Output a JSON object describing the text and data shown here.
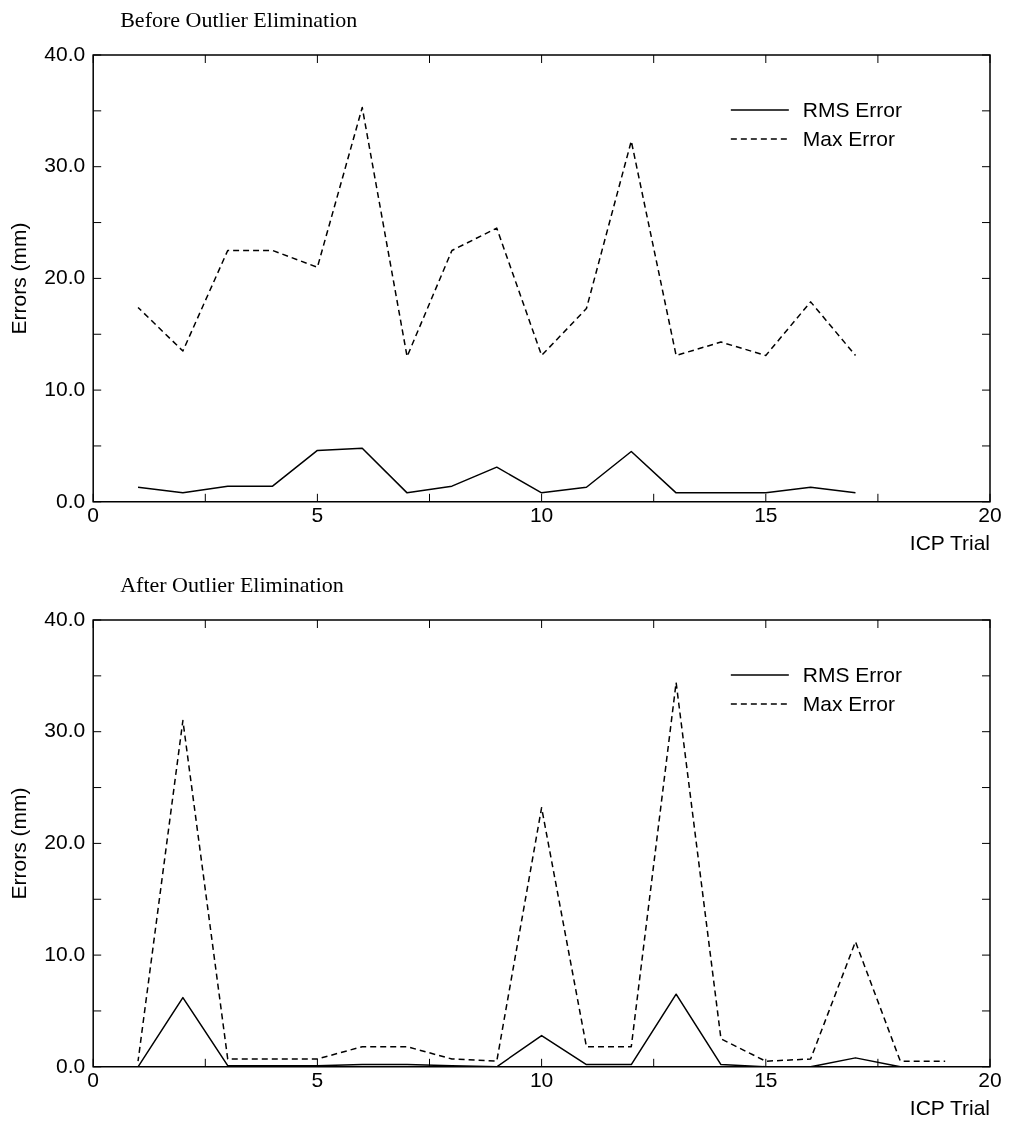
{
  "chart_data": [
    {
      "type": "line",
      "title": "Before Outlier Elimination",
      "xlabel": "ICP Trial",
      "ylabel": "Errors (mm)",
      "x": [
        1,
        2,
        3,
        4,
        5,
        6,
        7,
        8,
        9,
        10,
        11,
        12,
        13,
        14,
        15,
        16,
        17
      ],
      "series": [
        {
          "name": "RMS Error",
          "color": "#000000",
          "line_style": "solid",
          "values": [
            1.3,
            0.8,
            1.4,
            1.4,
            4.6,
            4.8,
            0.8,
            1.4,
            3.1,
            0.8,
            1.3,
            4.5,
            0.8,
            0.8,
            0.8,
            1.3,
            0.8
          ]
        },
        {
          "name": "Max Error",
          "color": "#000000",
          "line_style": "dashed",
          "values": [
            17.4,
            13.5,
            22.5,
            22.5,
            21.0,
            35.3,
            13.0,
            22.5,
            24.5,
            13.1,
            17.3,
            32.3,
            13.1,
            14.3,
            13.1,
            17.9,
            13.1
          ]
        }
      ],
      "xlim": [
        0,
        20
      ],
      "xticks": [
        0,
        {
          "value": 2.5,
          "label": null
        },
        5,
        {
          "value": 7.5,
          "label": null
        },
        10,
        {
          "value": 12.5,
          "label": null
        },
        15,
        {
          "value": 17.5,
          "label": null
        },
        20
      ],
      "ylim": [
        0,
        40
      ],
      "yticks": [
        {
          "value": 0,
          "label": "0.0"
        },
        {
          "value": 5,
          "label": null
        },
        {
          "value": 10,
          "label": "10.0"
        },
        {
          "value": 15,
          "label": null
        },
        {
          "value": 20,
          "label": "20.0"
        },
        {
          "value": 25,
          "label": null
        },
        {
          "value": 30,
          "label": "30.0"
        },
        {
          "value": 35,
          "label": null
        },
        {
          "value": 40,
          "label": "40.0"
        }
      ],
      "grid": false,
      "legend": "top right",
      "marker": "none"
    },
    {
      "type": "line",
      "title": "After Outlier Elimination",
      "xlabel": "ICP Trial",
      "ylabel": "Errors (mm)",
      "x": [
        1,
        2,
        3,
        4,
        5,
        6,
        7,
        8,
        9,
        10,
        11,
        12,
        13,
        14,
        15,
        16,
        17,
        18,
        19
      ],
      "series": [
        {
          "name": "RMS Error",
          "color": "#000000",
          "line_style": "solid",
          "values": [
            0.0,
            6.2,
            0.1,
            0.1,
            0.1,
            0.2,
            0.2,
            0.1,
            0.0,
            2.8,
            0.2,
            0.2,
            6.5,
            0.2,
            0.0,
            0.0,
            0.8,
            0.0,
            0.0
          ]
        },
        {
          "name": "Max Error",
          "color": "#000000",
          "line_style": "dashed",
          "values": [
            0.5,
            31.0,
            0.7,
            0.7,
            0.7,
            1.8,
            1.8,
            0.7,
            0.5,
            23.2,
            1.8,
            1.8,
            34.4,
            2.5,
            0.5,
            0.7,
            11.2,
            0.5,
            0.5
          ]
        }
      ],
      "xlim": [
        0,
        20
      ],
      "xticks": [
        0,
        {
          "value": 2.5,
          "label": null
        },
        5,
        {
          "value": 7.5,
          "label": null
        },
        10,
        {
          "value": 12.5,
          "label": null
        },
        15,
        {
          "value": 17.5,
          "label": null
        },
        20
      ],
      "ylim": [
        0,
        40
      ],
      "yticks": [
        {
          "value": 0,
          "label": "0.0"
        },
        {
          "value": 5,
          "label": null
        },
        {
          "value": 10,
          "label": "10.0"
        },
        {
          "value": 15,
          "label": null
        },
        {
          "value": 20,
          "label": "20.0"
        },
        {
          "value": 25,
          "label": null
        },
        {
          "value": 30,
          "label": "30.0"
        },
        {
          "value": 35,
          "label": null
        },
        {
          "value": 40,
          "label": "40.0"
        }
      ],
      "grid": false,
      "legend": "top right",
      "marker": "none"
    }
  ]
}
